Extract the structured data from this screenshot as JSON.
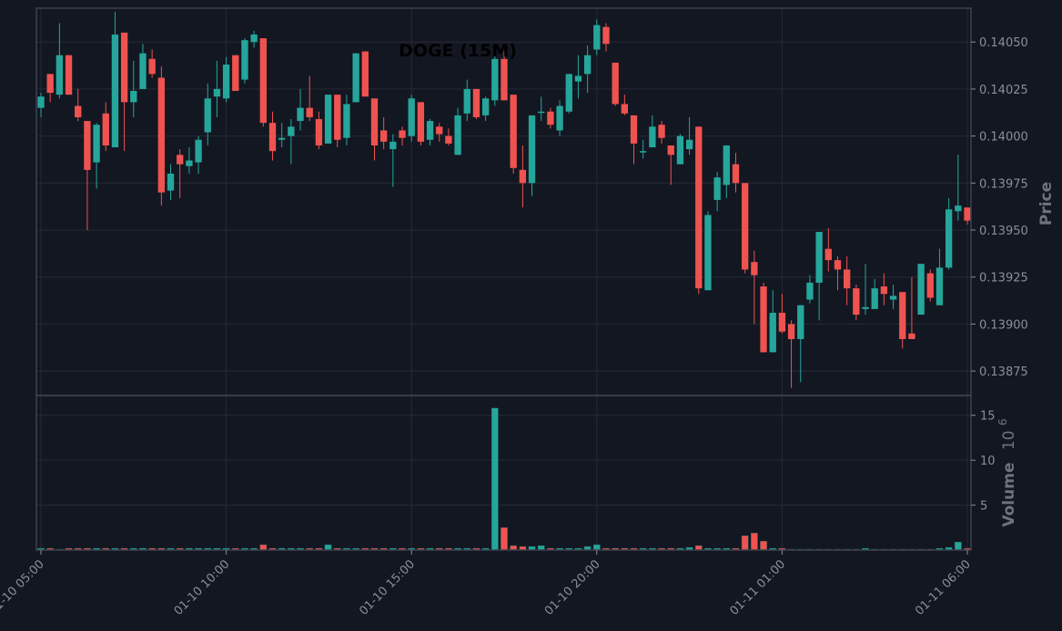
{
  "chart_data": {
    "type": "candlestick",
    "title": "DOGE (15M)",
    "interval": "15 minutes",
    "x_tick_labels": [
      "01-10 05:00",
      "01-10 10:00",
      "01-10 15:00",
      "01-10 20:00",
      "01-11 01:00",
      "01-11 06:00"
    ],
    "price_axis": {
      "label": "Price",
      "ticks": [
        0.13875,
        0.139,
        0.13925,
        0.1395,
        0.13975,
        0.14,
        0.14025,
        0.1405
      ],
      "tick_labels": [
        "0.13875",
        "0.13900",
        "0.13925",
        "0.13950",
        "0.13975",
        "0.14000",
        "0.14025",
        "0.14050"
      ],
      "range": [
        0.13862,
        0.14068
      ]
    },
    "volume_axis": {
      "label": "Volume",
      "multiplier_label": "10",
      "multiplier_exp": "6",
      "ticks": [
        5,
        10,
        15
      ],
      "tick_labels": [
        "5",
        "10",
        "15"
      ],
      "range": [
        0,
        17.2
      ]
    },
    "candles": [
      [
        0.14015,
        0.14021,
        0.1401,
        0.14023,
        0.2
      ],
      [
        0.14033,
        0.14023,
        0.14018,
        0.14033,
        0.2
      ],
      [
        0.14022,
        0.14043,
        0.1402,
        0.1406,
        0.1
      ],
      [
        0.14043,
        0.14022,
        0.14022,
        0.14043,
        0.2
      ],
      [
        0.14016,
        0.1401,
        0.14008,
        0.14025,
        0.2
      ],
      [
        0.14008,
        0.13982,
        0.1395,
        0.14008,
        0.2
      ],
      [
        0.13986,
        0.14006,
        0.13972,
        0.14007,
        0.2
      ],
      [
        0.14012,
        0.13995,
        0.13992,
        0.14018,
        0.2
      ],
      [
        0.13994,
        0.14054,
        0.13994,
        0.14066,
        0.2
      ],
      [
        0.14055,
        0.14018,
        0.13992,
        0.14055,
        0.2
      ],
      [
        0.14018,
        0.14024,
        0.1401,
        0.1404,
        0.2
      ],
      [
        0.14025,
        0.14044,
        0.14025,
        0.14049,
        0.2
      ],
      [
        0.14041,
        0.14033,
        0.14031,
        0.14046,
        0.2
      ],
      [
        0.14031,
        0.1397,
        0.13963,
        0.14037,
        0.2
      ],
      [
        0.13971,
        0.1398,
        0.13966,
        0.13985,
        0.2
      ],
      [
        0.1399,
        0.13985,
        0.13967,
        0.13993,
        0.2
      ],
      [
        0.13984,
        0.13987,
        0.1398,
        0.13994,
        0.2
      ],
      [
        0.13986,
        0.13998,
        0.1398,
        0.14,
        0.2
      ],
      [
        0.14002,
        0.1402,
        0.13995,
        0.14028,
        0.2
      ],
      [
        0.14021,
        0.14025,
        0.1401,
        0.1404,
        0.2
      ],
      [
        0.1402,
        0.14038,
        0.14018,
        0.14042,
        0.2
      ],
      [
        0.14043,
        0.14024,
        0.14024,
        0.14043,
        0.2
      ],
      [
        0.1403,
        0.14051,
        0.14028,
        0.14052,
        0.2
      ],
      [
        0.1405,
        0.14054,
        0.14047,
        0.14056,
        0.2
      ],
      [
        0.14052,
        0.14007,
        0.14005,
        0.14052,
        0.6
      ],
      [
        0.14007,
        0.13992,
        0.13987,
        0.14013,
        0.2
      ],
      [
        0.13998,
        0.13999,
        0.13994,
        0.14007,
        0.2
      ],
      [
        0.14,
        0.14005,
        0.13985,
        0.14009,
        0.2
      ],
      [
        0.14008,
        0.14015,
        0.14003,
        0.14025,
        0.2
      ],
      [
        0.14015,
        0.1401,
        0.14008,
        0.14032,
        0.2
      ],
      [
        0.14009,
        0.13995,
        0.13993,
        0.14013,
        0.2
      ],
      [
        0.13996,
        0.14022,
        0.13996,
        0.14022,
        0.6
      ],
      [
        0.14022,
        0.13998,
        0.13994,
        0.14022,
        0.2
      ],
      [
        0.13999,
        0.14017,
        0.13995,
        0.14022,
        0.2
      ],
      [
        0.14018,
        0.14044,
        0.14018,
        0.14044,
        0.2
      ],
      [
        0.14045,
        0.14021,
        0.14021,
        0.14045,
        0.2
      ],
      [
        0.1402,
        0.13995,
        0.13987,
        0.1402,
        0.2
      ],
      [
        0.14003,
        0.13997,
        0.13993,
        0.1401,
        0.2
      ],
      [
        0.13993,
        0.13997,
        0.13973,
        0.14001,
        0.2
      ],
      [
        0.14003,
        0.13999,
        0.13995,
        0.14005,
        0.2
      ],
      [
        0.14,
        0.1402,
        0.13997,
        0.14022,
        0.2
      ],
      [
        0.14018,
        0.13997,
        0.13995,
        0.14018,
        0.2
      ],
      [
        0.13998,
        0.14008,
        0.13995,
        0.14009,
        0.2
      ],
      [
        0.14005,
        0.14001,
        0.13997,
        0.14007,
        0.2
      ],
      [
        0.14,
        0.13996,
        0.13995,
        0.14004,
        0.2
      ],
      [
        0.1399,
        0.14011,
        0.1399,
        0.14015,
        0.2
      ],
      [
        0.14012,
        0.14025,
        0.14008,
        0.1403,
        0.2
      ],
      [
        0.14025,
        0.1401,
        0.14009,
        0.14025,
        0.2
      ],
      [
        0.14011,
        0.1402,
        0.14008,
        0.14021,
        0.2
      ],
      [
        0.14019,
        0.14041,
        0.14016,
        0.14044,
        15.8
      ],
      [
        0.14041,
        0.14019,
        0.14019,
        0.14045,
        2.5
      ],
      [
        0.14022,
        0.13983,
        0.1398,
        0.14022,
        0.5
      ],
      [
        0.13982,
        0.13975,
        0.13962,
        0.13995,
        0.4
      ],
      [
        0.13975,
        0.14011,
        0.13968,
        0.14011,
        0.4
      ],
      [
        0.14013,
        0.14013,
        0.14008,
        0.14021,
        0.5
      ],
      [
        0.14013,
        0.14006,
        0.14004,
        0.14015,
        0.2
      ],
      [
        0.14003,
        0.14016,
        0.14,
        0.14019,
        0.2
      ],
      [
        0.14013,
        0.14033,
        0.14012,
        0.14033,
        0.2
      ],
      [
        0.14029,
        0.14032,
        0.1402,
        0.14043,
        0.2
      ],
      [
        0.14033,
        0.14043,
        0.14023,
        0.14048,
        0.4
      ],
      [
        0.14046,
        0.14059,
        0.14043,
        0.14062,
        0.6
      ],
      [
        0.14058,
        0.14049,
        0.14045,
        0.1406,
        0.2
      ],
      [
        0.14039,
        0.14017,
        0.14016,
        0.14039,
        0.2
      ],
      [
        0.14017,
        0.14012,
        0.14011,
        0.14022,
        0.2
      ],
      [
        0.14011,
        0.13996,
        0.13985,
        0.14011,
        0.2
      ],
      [
        0.13992,
        0.13992,
        0.13988,
        0.13998,
        0.2
      ],
      [
        0.13994,
        0.14005,
        0.13994,
        0.14011,
        0.2
      ],
      [
        0.14006,
        0.13999,
        0.13996,
        0.14008,
        0.2
      ],
      [
        0.13995,
        0.1399,
        0.13974,
        0.13995,
        0.2
      ],
      [
        0.13985,
        0.14,
        0.13985,
        0.14001,
        0.2
      ],
      [
        0.13993,
        0.13998,
        0.1399,
        0.1401,
        0.3
      ],
      [
        0.14005,
        0.13919,
        0.13916,
        0.14005,
        0.5
      ],
      [
        0.13918,
        0.13958,
        0.13918,
        0.1396,
        0.2
      ],
      [
        0.13966,
        0.13978,
        0.1396,
        0.13981,
        0.2
      ],
      [
        0.13974,
        0.13995,
        0.13967,
        0.13995,
        0.2
      ],
      [
        0.13985,
        0.13975,
        0.1397,
        0.13991,
        0.2
      ],
      [
        0.13975,
        0.13929,
        0.13927,
        0.13975,
        1.6
      ],
      [
        0.13933,
        0.13926,
        0.139,
        0.13939,
        1.9
      ],
      [
        0.1392,
        0.13885,
        0.13885,
        0.13922,
        1.0
      ],
      [
        0.13885,
        0.13906,
        0.13885,
        0.13918,
        0.2
      ],
      [
        0.13906,
        0.13896,
        0.13895,
        0.13916,
        0.2
      ],
      [
        0.139,
        0.13892,
        0.13866,
        0.13902,
        0.1
      ],
      [
        0.13892,
        0.1391,
        0.13869,
        0.1391,
        0.1
      ],
      [
        0.13913,
        0.13922,
        0.13911,
        0.13926,
        0.1
      ],
      [
        0.13922,
        0.13949,
        0.13902,
        0.13949,
        0.1
      ],
      [
        0.1394,
        0.13934,
        0.13928,
        0.13951,
        0.1
      ],
      [
        0.13934,
        0.13929,
        0.13918,
        0.13936,
        0.1
      ],
      [
        0.13929,
        0.13919,
        0.1391,
        0.13936,
        0.1
      ],
      [
        0.13919,
        0.13905,
        0.13902,
        0.13921,
        0.1
      ],
      [
        0.13908,
        0.13909,
        0.13905,
        0.13932,
        0.2
      ],
      [
        0.13908,
        0.13919,
        0.13908,
        0.13924,
        0.1
      ],
      [
        0.1392,
        0.13916,
        0.1391,
        0.13927,
        0.1
      ],
      [
        0.13913,
        0.13915,
        0.13908,
        0.13921,
        0.1
      ],
      [
        0.13917,
        0.13892,
        0.13887,
        0.13917,
        0.1
      ],
      [
        0.13895,
        0.13892,
        0.13892,
        0.13925,
        0.1
      ],
      [
        0.13905,
        0.13932,
        0.13905,
        0.13932,
        0.1
      ],
      [
        0.13927,
        0.13914,
        0.13912,
        0.13929,
        0.1
      ],
      [
        0.1391,
        0.1393,
        0.1391,
        0.1394,
        0.2
      ],
      [
        0.1393,
        0.13961,
        0.13929,
        0.13967,
        0.3
      ],
      [
        0.1396,
        0.13963,
        0.13955,
        0.1399,
        0.9
      ],
      [
        0.13962,
        0.13955,
        0.13953,
        0.13962,
        0.2
      ]
    ]
  }
}
